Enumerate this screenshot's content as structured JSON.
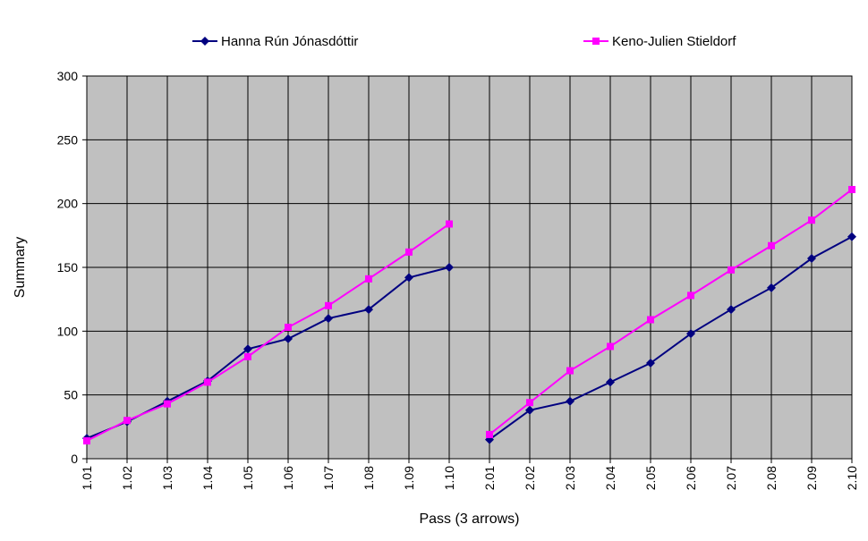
{
  "chart_data": {
    "type": "line",
    "title": "",
    "xlabel": "Pass (3 arrows)",
    "ylabel": "Summary",
    "ylim": [
      0,
      300
    ],
    "yticks": [
      0,
      50,
      100,
      150,
      200,
      250,
      300
    ],
    "grid": true,
    "legend_position": "top",
    "categories": [
      "1.01",
      "1.02",
      "1.03",
      "1.04",
      "1.05",
      "1.06",
      "1.07",
      "1.08",
      "1.09",
      "1.10",
      "2.01",
      "2.02",
      "2.03",
      "2.04",
      "2.05",
      "2.06",
      "2.07",
      "2.08",
      "2.09",
      "2.10"
    ],
    "series": [
      {
        "name": "Hanna Rún Jónasdóttir",
        "color": "#000080",
        "marker": "diamond",
        "values": [
          16,
          29,
          45,
          61,
          86,
          94,
          110,
          117,
          142,
          150,
          15,
          38,
          45,
          60,
          75,
          98,
          117,
          134,
          157,
          174
        ]
      },
      {
        "name": "Keno-Julien Stieldorf",
        "color": "#FF00FF",
        "marker": "square",
        "values": [
          14,
          30,
          43,
          60,
          80,
          103,
          120,
          141,
          162,
          184,
          19,
          44,
          69,
          88,
          109,
          128,
          148,
          167,
          187,
          211
        ]
      }
    ],
    "series_break_after_index": 9
  },
  "colors": {
    "plot_background": "#C0C0C0",
    "grid": "#000000"
  }
}
